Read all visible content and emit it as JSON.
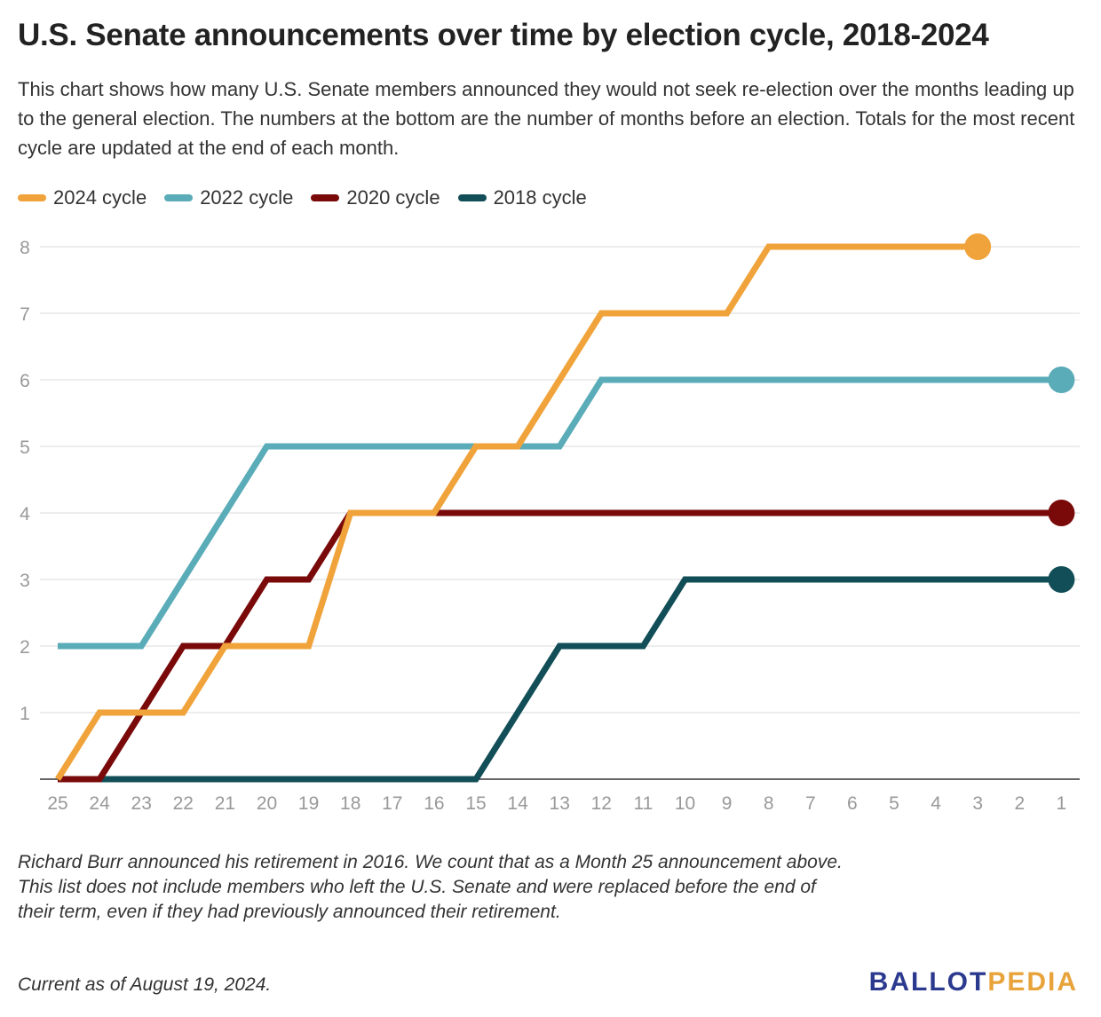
{
  "title": "U.S. Senate announcements over time by election cycle, 2018-2024",
  "subtitle": "This chart shows how many U.S. Senate members announced they would not seek re-election over the months leading up to the general election. The numbers at the bottom are the number of months before an election. Totals for the most recent cycle are updated at the end of each month.",
  "notes": [
    "Richard Burr announced his retirement in 2016. We count that as a Month 25 announcement above.",
    "This list does not include members who left the U.S. Senate and were replaced before the end of their term, even if they had previously announced their retirement."
  ],
  "current": "Current as of August 19, 2024.",
  "logo": {
    "part1": "BALLOT",
    "part2": "PEDIA"
  },
  "chart_data": {
    "type": "line",
    "categories": [
      "25",
      "24",
      "23",
      "22",
      "21",
      "20",
      "19",
      "18",
      "17",
      "16",
      "15",
      "14",
      "13",
      "12",
      "11",
      "10",
      "9",
      "8",
      "7",
      "6",
      "5",
      "4",
      "3",
      "2",
      "1"
    ],
    "ylim": [
      0,
      8
    ],
    "yticks": [
      1,
      2,
      3,
      4,
      5,
      6,
      7,
      8
    ],
    "grid": true,
    "legend_position": "top-left",
    "series": [
      {
        "name": "2024 cycle",
        "color": "#f0a33a",
        "values": [
          0,
          1,
          1,
          1,
          2,
          2,
          2,
          4,
          4,
          4,
          5,
          5,
          6,
          7,
          7,
          7,
          7,
          8,
          8,
          8,
          8,
          8,
          8,
          null,
          null
        ]
      },
      {
        "name": "2022 cycle",
        "color": "#5aacb8",
        "values": [
          2,
          2,
          2,
          3,
          4,
          5,
          5,
          5,
          5,
          5,
          5,
          5,
          5,
          6,
          6,
          6,
          6,
          6,
          6,
          6,
          6,
          6,
          6,
          6,
          6
        ]
      },
      {
        "name": "2020 cycle",
        "color": "#7a0a0a",
        "values": [
          0,
          0,
          1,
          2,
          2,
          3,
          3,
          4,
          4,
          4,
          4,
          4,
          4,
          4,
          4,
          4,
          4,
          4,
          4,
          4,
          4,
          4,
          4,
          4,
          4
        ]
      },
      {
        "name": "2018 cycle",
        "color": "#124e57",
        "values": [
          0,
          0,
          0,
          0,
          0,
          0,
          0,
          0,
          0,
          0,
          0,
          1,
          2,
          2,
          2,
          3,
          3,
          3,
          3,
          3,
          3,
          3,
          3,
          3,
          3
        ]
      }
    ]
  }
}
